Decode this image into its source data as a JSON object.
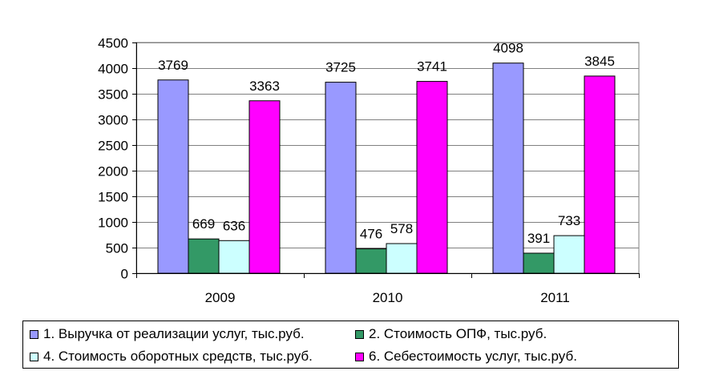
{
  "chart_data": {
    "type": "bar",
    "categories": [
      "2009",
      "2010",
      "2011"
    ],
    "series": [
      {
        "name": "1. Выручка от реализации услуг, тыс.руб.",
        "values": [
          3769,
          3725,
          4098
        ],
        "color": "#9999ff"
      },
      {
        "name": "2. Стоимость ОПФ, тыс.руб.",
        "values": [
          669,
          476,
          391
        ],
        "color": "#339966"
      },
      {
        "name": "4. Стоимость оборотных средств, тыс.руб.",
        "values": [
          636,
          578,
          733
        ],
        "color": "#ccffff"
      },
      {
        "name": "6. Себестоимость услуг, тыс.руб.",
        "values": [
          3363,
          3741,
          3845
        ],
        "color": "#ff00ff"
      }
    ],
    "yticks": [
      "0",
      "500",
      "1000",
      "1500",
      "2000",
      "2500",
      "3000",
      "3500",
      "4000",
      "4500"
    ],
    "ylim": [
      0,
      4500
    ],
    "grid": true,
    "legend_position": "bottom",
    "plot_background": "#ffffff",
    "data_labels": true
  }
}
